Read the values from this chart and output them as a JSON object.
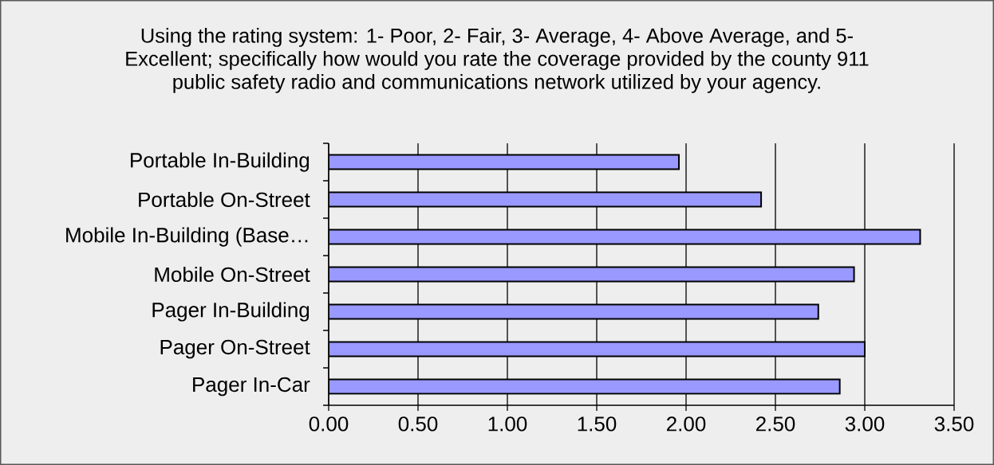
{
  "chart_data": {
    "type": "bar",
    "orientation": "horizontal",
    "title": "Using the rating system: 1- Poor, 2- Fair, 3- Average, 4- Above Average, and 5- Excellent; specifically how would you rate the coverage provided by the county 911 public safety radio and communications network utilized by your agency.",
    "categories": [
      "Portable In-Building",
      "Portable On-Street",
      "Mobile In-Building (Base…",
      "Mobile On-Street",
      "Pager In-Building",
      "Pager On-Street",
      "Pager In-Car"
    ],
    "values": [
      1.96,
      2.42,
      3.31,
      2.94,
      2.74,
      3.0,
      2.86
    ],
    "color": "#9999ff",
    "xlim": [
      0,
      3.5
    ],
    "xticks": [
      {
        "value": 0,
        "label": "0.00"
      },
      {
        "value": 0.5,
        "label": "0.50"
      },
      {
        "value": 1,
        "label": "1.00"
      },
      {
        "value": 1.5,
        "label": "1.50"
      },
      {
        "value": 2,
        "label": "2.00"
      },
      {
        "value": 2.5,
        "label": "2.50"
      },
      {
        "value": 3,
        "label": "3.00"
      },
      {
        "value": 3.5,
        "label": "3.50"
      }
    ],
    "grid": "x"
  }
}
